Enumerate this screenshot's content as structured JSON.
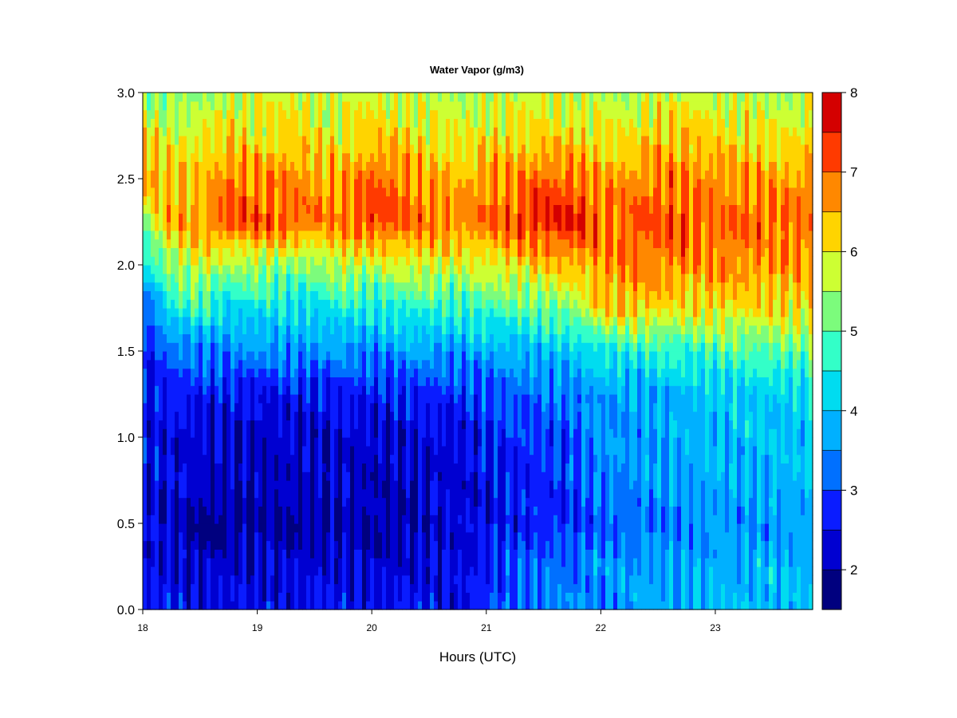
{
  "chart_data": {
    "type": "heatmap",
    "title": "Water Vapor (g/m3)",
    "xlabel": "Hours (UTC)",
    "ylabel": "",
    "x_ticks": [
      "18",
      "19",
      "20",
      "21",
      "22",
      "23"
    ],
    "x_tick_values": [
      18,
      19,
      20,
      21,
      22,
      23
    ],
    "xlim": [
      18,
      23.85
    ],
    "y_ticks": [
      "0.0",
      "0.5",
      "1.0",
      "1.5",
      "2.0",
      "2.5",
      "3.0"
    ],
    "y_tick_values": [
      0,
      0.5,
      1.0,
      1.5,
      2.0,
      2.5,
      3.0
    ],
    "ylim": [
      0,
      3.0
    ],
    "colorbar": {
      "ticks": [
        "2",
        "3",
        "4",
        "5",
        "6",
        "7",
        "8"
      ],
      "tick_values": [
        2,
        3,
        4,
        5,
        6,
        7,
        8
      ],
      "range": [
        1.5,
        8.0
      ],
      "levels": [
        1.5,
        2.0,
        2.5,
        3.0,
        3.5,
        4.0,
        4.5,
        5.0,
        5.5,
        6.0,
        6.5,
        7.0,
        7.5,
        8.0
      ],
      "colors": [
        "#00007f",
        "#0000d1",
        "#0a1cff",
        "#0070ff",
        "#00b0ff",
        "#00dcf0",
        "#33ffc8",
        "#7cfc7c",
        "#cdff33",
        "#ffd400",
        "#ff8800",
        "#ff3a00",
        "#d40000",
        "#7f0000"
      ]
    },
    "grid": false,
    "height_profile": {
      "heights": [
        0.0,
        0.25,
        0.5,
        0.75,
        1.0,
        1.25,
        1.5,
        1.75,
        2.0,
        2.25,
        2.5,
        2.75,
        3.0
      ],
      "times": [
        18.0,
        18.25,
        18.5,
        18.75,
        19.0,
        19.25,
        19.5,
        19.75,
        20.0,
        20.25,
        20.5,
        20.75,
        21.0,
        21.25,
        21.5,
        21.75,
        22.0,
        22.25,
        22.5,
        22.75,
        23.0,
        23.25,
        23.5,
        23.85
      ],
      "values": [
        [
          2.6,
          2.5,
          2.4,
          2.4,
          2.5,
          2.3,
          2.6,
          2.7,
          4.2,
          5.2,
          6.8,
          6.3,
          5.2
        ],
        [
          2.5,
          2.4,
          2.2,
          2.4,
          2.4,
          2.8,
          3.2,
          4.5,
          5.4,
          6.6,
          6.3,
          5.8,
          5.2
        ],
        [
          2.5,
          2.2,
          1.7,
          2.3,
          2.2,
          2.6,
          3.4,
          4.7,
          5.9,
          6.6,
          6.3,
          6.0,
          5.2
        ],
        [
          2.4,
          2.3,
          1.8,
          2.2,
          2.3,
          2.6,
          3.4,
          4.2,
          5.4,
          7.2,
          6.9,
          6.2,
          5.8
        ],
        [
          2.4,
          2.3,
          1.9,
          2.1,
          2.1,
          2.5,
          3.5,
          4.4,
          5.5,
          7.2,
          6.8,
          6.0,
          5.7
        ],
        [
          2.5,
          2.3,
          1.9,
          2.2,
          2.2,
          2.6,
          3.6,
          4.3,
          5.3,
          7.1,
          6.8,
          6.2,
          5.8
        ],
        [
          2.5,
          2.4,
          1.9,
          2.2,
          2.2,
          2.5,
          3.5,
          4.2,
          5.3,
          6.9,
          6.6,
          6.1,
          5.8
        ],
        [
          2.6,
          2.4,
          2.0,
          2.3,
          2.3,
          2.7,
          3.6,
          4.6,
          5.8,
          6.8,
          6.5,
          6.0,
          5.6
        ],
        [
          2.5,
          2.2,
          2.0,
          2.1,
          2.2,
          2.6,
          3.4,
          4.4,
          5.6,
          7.3,
          7.0,
          6.2,
          5.9
        ],
        [
          2.6,
          2.3,
          1.9,
          2.1,
          2.3,
          2.7,
          3.6,
          4.6,
          5.8,
          7.1,
          6.8,
          6.2,
          5.7
        ],
        [
          2.6,
          2.4,
          2.2,
          2.3,
          2.4,
          2.8,
          3.7,
          4.6,
          5.9,
          6.9,
          6.5,
          6.0,
          5.6
        ],
        [
          2.6,
          2.4,
          2.3,
          2.3,
          2.4,
          2.8,
          3.6,
          4.6,
          5.8,
          6.8,
          6.4,
          5.9,
          5.6
        ],
        [
          2.8,
          2.6,
          2.4,
          2.4,
          2.6,
          3.0,
          3.7,
          4.8,
          5.9,
          6.9,
          6.6,
          6.1,
          5.6
        ],
        [
          3.2,
          3.1,
          2.6,
          2.6,
          2.8,
          3.1,
          3.8,
          4.9,
          6.1,
          7.2,
          6.8,
          6.1,
          5.7
        ],
        [
          3.3,
          3.2,
          2.7,
          2.8,
          2.9,
          3.3,
          3.9,
          5.1,
          6.3,
          7.5,
          7.0,
          6.2,
          5.8
        ],
        [
          3.4,
          3.3,
          2.8,
          2.9,
          3.0,
          3.4,
          4.0,
          5.3,
          6.4,
          7.6,
          7.0,
          6.2,
          5.6
        ],
        [
          3.5,
          3.5,
          3.1,
          3.4,
          3.5,
          3.6,
          4.4,
          6.2,
          6.6,
          7.0,
          6.6,
          6.0,
          5.6
        ],
        [
          3.6,
          3.6,
          3.2,
          3.5,
          3.6,
          3.7,
          4.5,
          6.4,
          6.8,
          7.1,
          6.7,
          6.0,
          5.6
        ],
        [
          3.7,
          3.6,
          3.3,
          3.6,
          3.7,
          3.8,
          4.6,
          6.1,
          6.8,
          7.2,
          6.9,
          6.4,
          5.7
        ],
        [
          3.8,
          3.7,
          3.4,
          3.7,
          3.8,
          3.9,
          4.7,
          6.0,
          6.8,
          7.1,
          6.8,
          6.3,
          5.8
        ],
        [
          3.9,
          3.8,
          3.5,
          3.8,
          3.9,
          4.0,
          4.8,
          6.2,
          6.7,
          7.0,
          6.7,
          6.2,
          5.7
        ],
        [
          3.9,
          3.8,
          3.5,
          3.8,
          3.9,
          4.0,
          4.9,
          6.1,
          6.7,
          7.0,
          6.6,
          6.1,
          5.6
        ],
        [
          4.0,
          3.9,
          3.5,
          3.9,
          3.9,
          4.1,
          5.0,
          6.1,
          6.6,
          7.0,
          6.6,
          6.0,
          5.5
        ],
        [
          4.0,
          3.9,
          3.6,
          3.9,
          4.0,
          4.2,
          5.0,
          6.1,
          6.6,
          6.9,
          6.6,
          6.0,
          5.6
        ]
      ]
    }
  }
}
